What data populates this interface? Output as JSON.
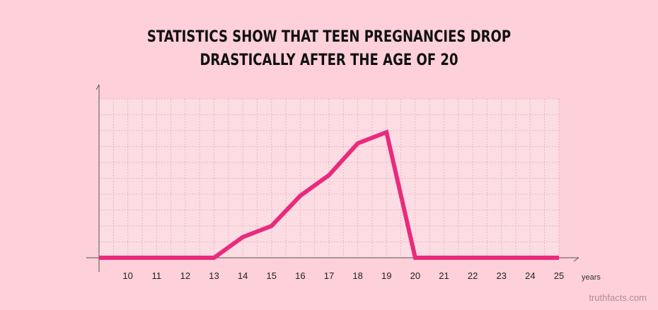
{
  "title_lines": [
    "STATISTICS SHOW THAT TEEN PREGNANCIES DROP",
    "DRASTICALLY AFTER THE AGE OF 20"
  ],
  "watermark": "truthfacts.com",
  "colors": {
    "background": "#fdd0da",
    "plot_area": "#fcdde4",
    "grid": "#e2a9b6",
    "axis": "#555555",
    "line": "#ea2a7c",
    "title": "#111111"
  },
  "chart_data": {
    "type": "line",
    "title": "STATISTICS SHOW THAT TEEN PREGNANCIES DROP DRASTICALLY AFTER THE AGE OF 20",
    "xlabel": "years",
    "ylabel": "",
    "x_tick_labels": [
      "10",
      "11",
      "12",
      "13",
      "14",
      "15",
      "16",
      "17",
      "18",
      "19",
      "20",
      "21",
      "22",
      "23",
      "24",
      "25"
    ],
    "xlim": [
      9,
      25
    ],
    "ylim": [
      0,
      10
    ],
    "grid": true,
    "y_tick_labels_shown": false,
    "series": [
      {
        "x": [
          9,
          10,
          11,
          12,
          13,
          14,
          15,
          16,
          17,
          18,
          19,
          20,
          21,
          22,
          23,
          24,
          25
        ],
        "y": [
          0,
          0,
          0,
          0,
          0,
          1.3,
          2.0,
          3.9,
          5.2,
          7.2,
          7.9,
          0,
          0,
          0,
          0,
          0,
          0
        ]
      }
    ]
  }
}
